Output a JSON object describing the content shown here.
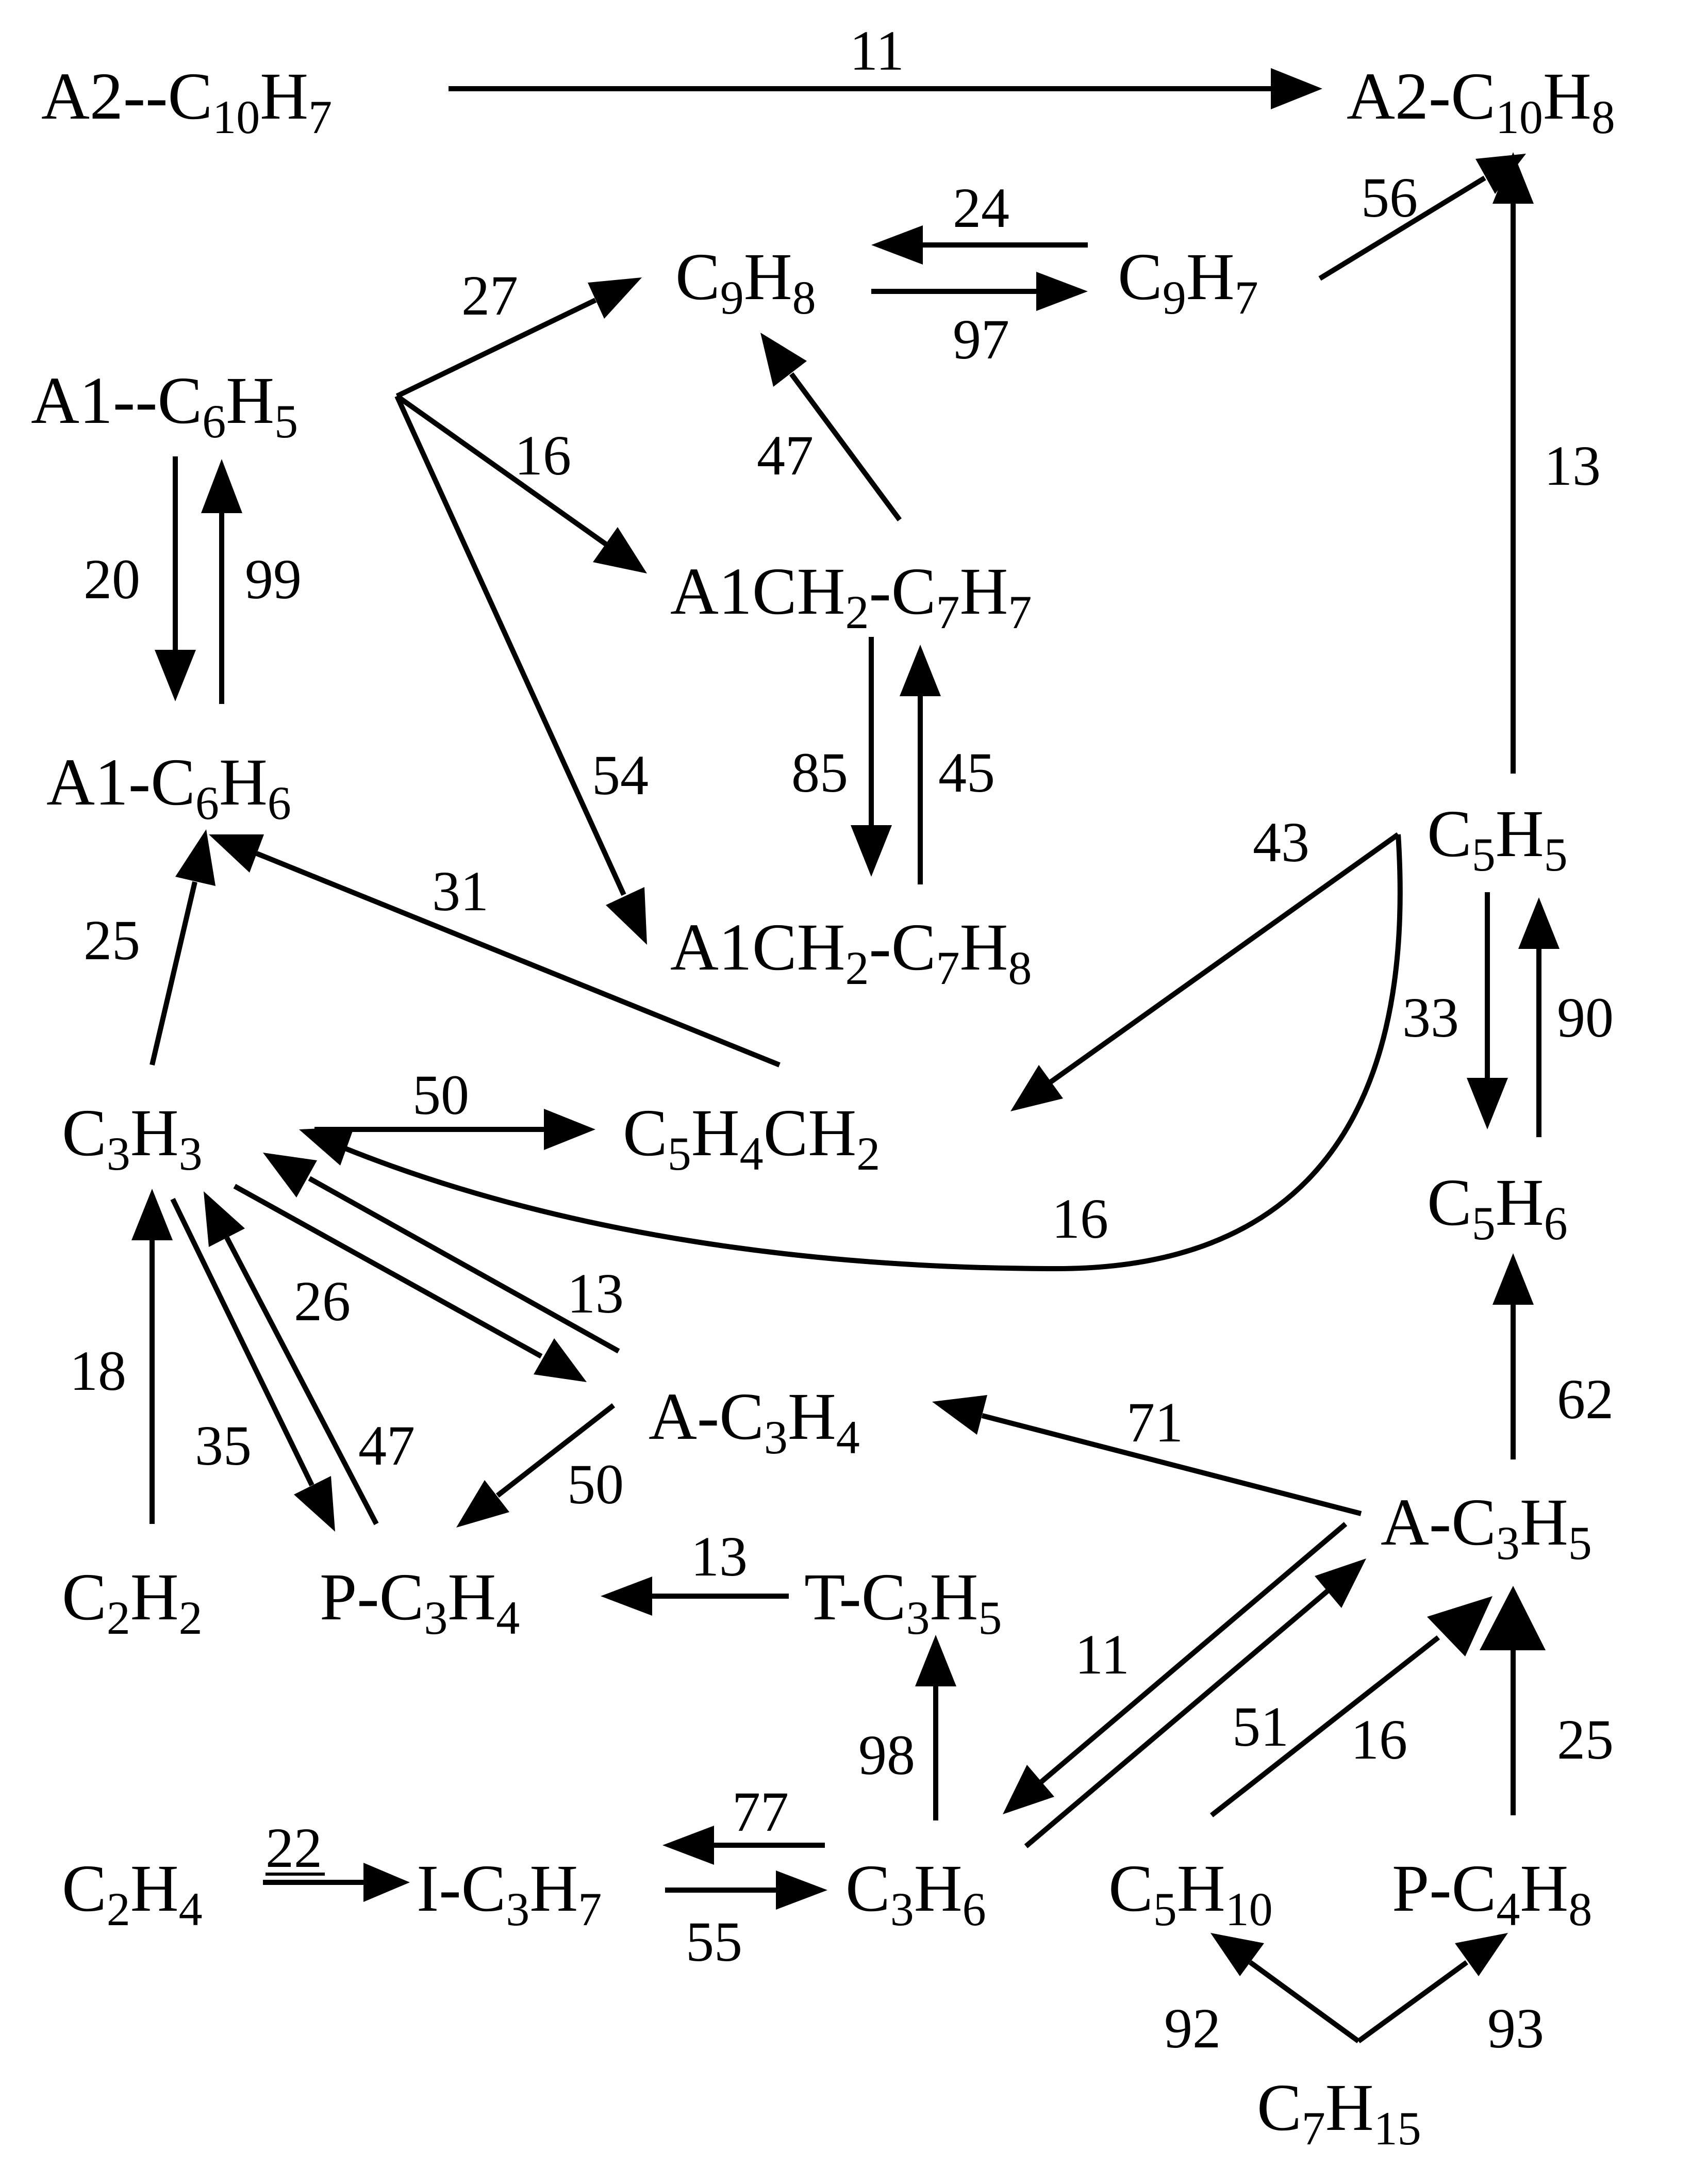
{
  "species": {
    "a2_c10h7": [
      {
        "t": "A2--C"
      },
      {
        "t": "10",
        "sub": true
      },
      {
        "t": "H"
      },
      {
        "t": "7",
        "sub": true
      }
    ],
    "a2_c10h8": [
      {
        "t": "A2-C"
      },
      {
        "t": "10",
        "sub": true
      },
      {
        "t": "H"
      },
      {
        "t": "8",
        "sub": true
      }
    ],
    "c9h8": [
      {
        "t": "C"
      },
      {
        "t": "9",
        "sub": true
      },
      {
        "t": "H"
      },
      {
        "t": "8",
        "sub": true
      }
    ],
    "c9h7": [
      {
        "t": "C"
      },
      {
        "t": "9",
        "sub": true
      },
      {
        "t": "H"
      },
      {
        "t": "7",
        "sub": true
      }
    ],
    "a1_c6h5": [
      {
        "t": "A1--C"
      },
      {
        "t": "6",
        "sub": true
      },
      {
        "t": "H"
      },
      {
        "t": "5",
        "sub": true
      }
    ],
    "a1ch2_c7h7": [
      {
        "t": "A1CH"
      },
      {
        "t": "2",
        "sub": true
      },
      {
        "t": "-C"
      },
      {
        "t": "7",
        "sub": true
      },
      {
        "t": "H"
      },
      {
        "t": "7",
        "sub": true
      }
    ],
    "a1_c6h6": [
      {
        "t": "A1-C"
      },
      {
        "t": "6",
        "sub": true
      },
      {
        "t": "H"
      },
      {
        "t": "6",
        "sub": true
      }
    ],
    "a1ch2_c7h8": [
      {
        "t": "A1CH"
      },
      {
        "t": "2",
        "sub": true
      },
      {
        "t": "-C"
      },
      {
        "t": "7",
        "sub": true
      },
      {
        "t": "H"
      },
      {
        "t": "8",
        "sub": true
      }
    ],
    "c5h5": [
      {
        "t": "C"
      },
      {
        "t": "5",
        "sub": true
      },
      {
        "t": "H"
      },
      {
        "t": "5",
        "sub": true
      }
    ],
    "c3h3": [
      {
        "t": "C"
      },
      {
        "t": "3",
        "sub": true
      },
      {
        "t": "H"
      },
      {
        "t": "3",
        "sub": true
      }
    ],
    "c5h4ch2": [
      {
        "t": "C"
      },
      {
        "t": "5",
        "sub": true
      },
      {
        "t": "H"
      },
      {
        "t": "4",
        "sub": true
      },
      {
        "t": "CH"
      },
      {
        "t": "2",
        "sub": true
      }
    ],
    "c5h6": [
      {
        "t": "C"
      },
      {
        "t": "5",
        "sub": true
      },
      {
        "t": "H"
      },
      {
        "t": "6",
        "sub": true
      }
    ],
    "a_c3h4": [
      {
        "t": "A-C"
      },
      {
        "t": "3",
        "sub": true
      },
      {
        "t": "H"
      },
      {
        "t": "4",
        "sub": true
      }
    ],
    "a_c3h5": [
      {
        "t": "A-C"
      },
      {
        "t": "3",
        "sub": true
      },
      {
        "t": "H"
      },
      {
        "t": "5",
        "sub": true
      }
    ],
    "c2h2": [
      {
        "t": "C"
      },
      {
        "t": "2",
        "sub": true
      },
      {
        "t": "H"
      },
      {
        "t": "2",
        "sub": true
      }
    ],
    "p_c3h4": [
      {
        "t": "P-C"
      },
      {
        "t": "3",
        "sub": true
      },
      {
        "t": "H"
      },
      {
        "t": "4",
        "sub": true
      }
    ],
    "t_c3h5": [
      {
        "t": "T-C"
      },
      {
        "t": "3",
        "sub": true
      },
      {
        "t": "H"
      },
      {
        "t": "5",
        "sub": true
      }
    ],
    "c2h4": [
      {
        "t": "C"
      },
      {
        "t": "2",
        "sub": true
      },
      {
        "t": "H"
      },
      {
        "t": "4",
        "sub": true
      }
    ],
    "i_c3h7": [
      {
        "t": "I-C"
      },
      {
        "t": "3",
        "sub": true
      },
      {
        "t": "H"
      },
      {
        "t": "7",
        "sub": true
      }
    ],
    "c3h6": [
      {
        "t": "C"
      },
      {
        "t": "3",
        "sub": true
      },
      {
        "t": "H"
      },
      {
        "t": "6",
        "sub": true
      }
    ],
    "c5h10": [
      {
        "t": "C"
      },
      {
        "t": "5",
        "sub": true
      },
      {
        "t": "H"
      },
      {
        "t": "10",
        "sub": true
      }
    ],
    "p_c4h8": [
      {
        "t": "P-C"
      },
      {
        "t": "4",
        "sub": true
      },
      {
        "t": "H"
      },
      {
        "t": "8",
        "sub": true
      }
    ],
    "c7h15": [
      {
        "t": "C"
      },
      {
        "t": "7",
        "sub": true
      },
      {
        "t": "H"
      },
      {
        "t": "15",
        "sub": true
      }
    ]
  },
  "reactions": [
    {
      "id": "a2c10h7-to-a2c10h8",
      "from": "A2--C10H7",
      "to": "A2-C10H8",
      "label": "11"
    },
    {
      "id": "c9h7-to-c9h8",
      "from": "C9H7",
      "to": "C9H8",
      "label": "24"
    },
    {
      "id": "c9h8-to-c9h7",
      "from": "C9H8",
      "to": "C9H7",
      "label": "97"
    },
    {
      "id": "c9h7-to-a2c10h8",
      "from": "C9H7",
      "to": "A2-C10H8",
      "label": "56"
    },
    {
      "id": "a1c6h5-to-c9h8",
      "from": "A1--C6H5",
      "to": "C9H8",
      "label": "27"
    },
    {
      "id": "a1c6h5-to-a1ch2c7h7",
      "from": "A1--C6H5",
      "to": "A1CH2-C7H7",
      "label": "16"
    },
    {
      "id": "a1c6h5-to-a1ch2c7h8",
      "from": "A1--C6H5",
      "to": "A1CH2-C7H8",
      "label": "54"
    },
    {
      "id": "a1ch2c7h7-to-c9h8",
      "from": "A1CH2-C7H7",
      "to": "C9H8",
      "label": "47"
    },
    {
      "id": "a1c6h5-to-a1c6h6",
      "from": "A1--C6H5",
      "to": "A1-C6H6",
      "label": "20"
    },
    {
      "id": "a1c6h6-to-a1c6h5",
      "from": "A1-C6H6",
      "to": "A1--C6H5",
      "label": "99"
    },
    {
      "id": "c5h5-to-a2c10h8",
      "from": "C5H5",
      "to": "A2-C10H8",
      "label": "13"
    },
    {
      "id": "a1ch2c7h7-to-a1ch2c7h8",
      "from": "A1CH2-C7H7",
      "to": "A1CH2-C7H8",
      "label": "85"
    },
    {
      "id": "a1ch2c7h8-to-a1ch2c7h7",
      "from": "A1CH2-C7H8",
      "to": "A1CH2-C7H7",
      "label": "45"
    },
    {
      "id": "c5h5-to-c5h4ch2",
      "from": "C5H5",
      "to": "C5H4CH2",
      "label": "43"
    },
    {
      "id": "c3h3-to-a1c6h6",
      "from": "C3H3",
      "to": "A1-C6H6",
      "label": "25"
    },
    {
      "id": "c5h4ch2-to-a1c6h6",
      "from": "C5H4CH2",
      "to": "A1-C6H6",
      "label": "31"
    },
    {
      "id": "c5h5-to-c5h6",
      "from": "C5H5",
      "to": "C5H6",
      "label": "33"
    },
    {
      "id": "c5h6-to-c5h5",
      "from": "C5H6",
      "to": "C5H5",
      "label": "90"
    },
    {
      "id": "c3h3-to-c5h4ch2",
      "from": "C3H3",
      "to": "C5H4CH2",
      "label": "50"
    },
    {
      "id": "c5h5-to-c3h3",
      "from": "C5H5",
      "to": "C3H3",
      "label": "16"
    },
    {
      "id": "c3h3-to-ac3h4",
      "from": "C3H3",
      "to": "A-C3H4",
      "label": "26"
    },
    {
      "id": "ac3h4-to-c3h3",
      "from": "A-C3H4",
      "to": "C3H3",
      "label": "13"
    },
    {
      "id": "c2h2-to-c3h3",
      "from": "C2H2",
      "to": "C3H3",
      "label": "18"
    },
    {
      "id": "c3h3-to-pc3h4",
      "from": "C3H3",
      "to": "P-C3H4",
      "label": "35"
    },
    {
      "id": "pc3h4-to-c3h3",
      "from": "P-C3H4",
      "to": "C3H3",
      "label": "47"
    },
    {
      "id": "ac3h4-to-pc3h4",
      "from": "A-C3H4",
      "to": "P-C3H4",
      "label": "50"
    },
    {
      "id": "ac3h5-to-ac3h4",
      "from": "A-C3H5",
      "to": "A-C3H4",
      "label": "71"
    },
    {
      "id": "ac3h5-to-c5h6",
      "from": "A-C3H5",
      "to": "C5H6",
      "label": "62"
    },
    {
      "id": "tc3h5-to-pc3h4",
      "from": "T-C3H5",
      "to": "P-C3H4",
      "label": "13"
    },
    {
      "id": "ac3h5-to-c3h6",
      "from": "A-C3H5",
      "to": "C3H6",
      "label": "11"
    },
    {
      "id": "c3h6-to-ac3h5",
      "from": "C3H6",
      "to": "A-C3H5",
      "label": "51"
    },
    {
      "id": "c5h10-to-ac3h5",
      "from": "C5H10",
      "to": "A-C3H5",
      "label": "16"
    },
    {
      "id": "pc4h8-to-ac3h5",
      "from": "P-C4H8",
      "to": "A-C3H5",
      "label": "25"
    },
    {
      "id": "c3h6-to-tc3h5",
      "from": "C3H6",
      "to": "T-C3H5",
      "label": "98"
    },
    {
      "id": "c2h4-to-ic3h7",
      "from": "C2H4",
      "to": "I-C3H7",
      "label": "22"
    },
    {
      "id": "c3h6-to-ic3h7",
      "from": "C3H6",
      "to": "I-C3H7",
      "label": "77"
    },
    {
      "id": "ic3h7-to-c3h6",
      "from": "I-C3H7",
      "to": "C3H6",
      "label": "55"
    },
    {
      "id": "c7h15-to-c5h10",
      "from": "C7H15",
      "to": "C5H10",
      "label": "92"
    },
    {
      "id": "c7h15-to-pc4h8",
      "from": "C7H15",
      "to": "P-C4H8",
      "label": "93"
    }
  ]
}
